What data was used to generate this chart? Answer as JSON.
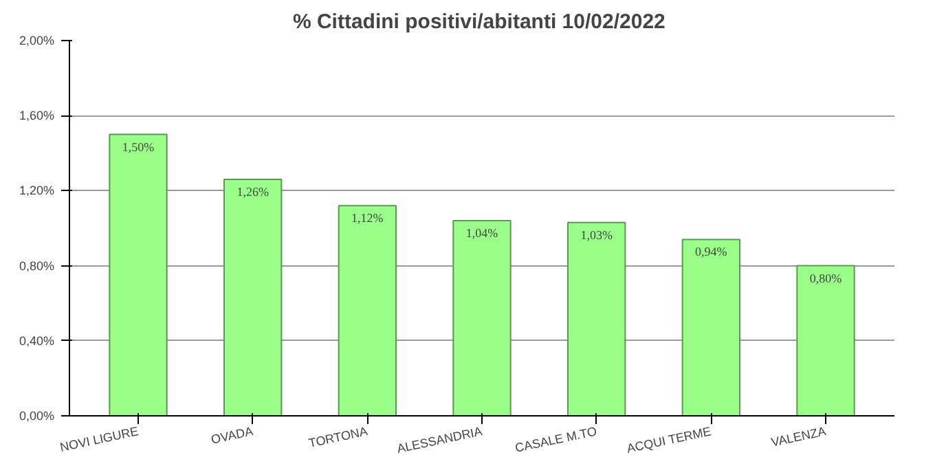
{
  "chart_data": {
    "type": "bar",
    "title": "% Cittadini positivi/abitanti  10/02/2022",
    "categories": [
      "NOVI LIGURE",
      "OVADA",
      "TORTONA",
      "ALESSANDRIA",
      "CASALE M.TO",
      "ACQUI TERME",
      "VALENZA"
    ],
    "values": [
      1.5,
      1.26,
      1.12,
      1.04,
      1.03,
      0.94,
      0.8
    ],
    "value_labels": [
      "1,50%",
      "1,26%",
      "1,12%",
      "1,04%",
      "1,03%",
      "0,94%",
      "0,80%"
    ],
    "color": "#99ff88",
    "ylim": [
      0,
      2.0
    ],
    "yticks": [
      {
        "value": 0,
        "label": "0,00%"
      },
      {
        "value": 0.4,
        "label": "0,40%"
      },
      {
        "value": 0.8,
        "label": "0,80%"
      },
      {
        "value": 1.2,
        "label": "1,20%"
      },
      {
        "value": 1.6,
        "label": "1,60%"
      },
      {
        "value": 2.0,
        "label": "2,00%"
      }
    ],
    "grid": "y"
  }
}
